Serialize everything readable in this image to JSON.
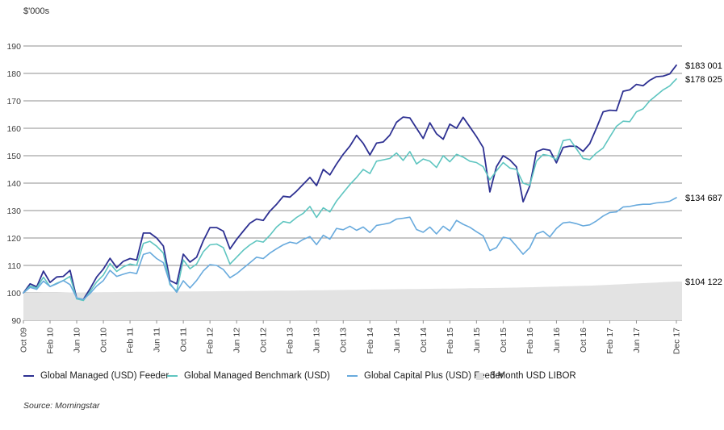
{
  "source": "Source: Morningstar",
  "chart_data": {
    "type": "line",
    "ylabel": "$'000s",
    "ylim": [
      90,
      190
    ],
    "ytick_interval": 10,
    "grid": "horizontal",
    "legend_position": "bottom",
    "x_start": "Oct 2009",
    "x_end": "Dec 2017",
    "x_unit": "month",
    "colors": {
      "grid": "#8f8f8f",
      "axis_text": "#3f3f3f",
      "background": "#ffffff"
    },
    "xticks": [
      {
        "label": "Oct 09",
        "i": 0
      },
      {
        "label": "Feb 10",
        "i": 4
      },
      {
        "label": "Jun 10",
        "i": 8
      },
      {
        "label": "Oct 10",
        "i": 12
      },
      {
        "label": "Feb 11",
        "i": 16
      },
      {
        "label": "Jun 11",
        "i": 20
      },
      {
        "label": "Oct 11",
        "i": 24
      },
      {
        "label": "Feb 12",
        "i": 28
      },
      {
        "label": "Jun 12",
        "i": 32
      },
      {
        "label": "Oct 12",
        "i": 36
      },
      {
        "label": "Feb 13",
        "i": 40
      },
      {
        "label": "Jun 13",
        "i": 44
      },
      {
        "label": "Oct 13",
        "i": 48
      },
      {
        "label": "Feb 14",
        "i": 52
      },
      {
        "label": "Jun 14",
        "i": 56
      },
      {
        "label": "Oct 14",
        "i": 60
      },
      {
        "label": "Feb 15",
        "i": 64
      },
      {
        "label": "Jun 15",
        "i": 68
      },
      {
        "label": "Oct 15",
        "i": 72
      },
      {
        "label": "Feb 16",
        "i": 76
      },
      {
        "label": "Jun 16",
        "i": 80
      },
      {
        "label": "Oct 16",
        "i": 84
      },
      {
        "label": "Feb 17",
        "i": 88
      },
      {
        "label": "Jun 17",
        "i": 92
      },
      {
        "label": "Dec 17",
        "i": 98
      }
    ],
    "series": [
      {
        "name": "Global Managed (USD) Feeder",
        "type": "line",
        "color": "#2e3192",
        "width": 1.8,
        "end_label": "$183 001",
        "end_value": 183001,
        "values": [
          100,
          103.3,
          102.2,
          107.9,
          103.8,
          105.8,
          106,
          108.2,
          98,
          97.6,
          101.5,
          105.8,
          108.7,
          112.6,
          109.2,
          111.5,
          112.5,
          112,
          121.8,
          121.8,
          120,
          117.1,
          104.5,
          103.3,
          114.1,
          111.2,
          113,
          119,
          123.8,
          123.8,
          122.5,
          116,
          119.5,
          122.5,
          125.4,
          126.9,
          126.4,
          129.8,
          132.3,
          135.2,
          134.9,
          137.1,
          139.6,
          142.1,
          139.1,
          145,
          143,
          147,
          150.5,
          153.5,
          157.4,
          154.5,
          150.3,
          154.6,
          155,
          157.5,
          162.2,
          164.1,
          163.8,
          160,
          156.3,
          162,
          158,
          156,
          161.5,
          160,
          164,
          160.5,
          157,
          153,
          136.8,
          146,
          150,
          148.5,
          145.9,
          133.2,
          139,
          151.4,
          152.4,
          152,
          147.4,
          153,
          153.5,
          153.4,
          151.6,
          154.4,
          160,
          166,
          166.6,
          166.4,
          173.5,
          174,
          176,
          175.5,
          177.5,
          178.8,
          179,
          179.8,
          183
        ]
      },
      {
        "name": "Global Managed Benchmark (USD)",
        "type": "line",
        "color": "#5ec5c0",
        "width": 1.6,
        "end_label": "$178 025",
        "end_value": 178025,
        "values": [
          100,
          102.5,
          101.8,
          105.7,
          102.3,
          103.5,
          104.5,
          106,
          97.8,
          97.2,
          100.5,
          104,
          106.5,
          110.7,
          107.8,
          109.5,
          110.5,
          110,
          118,
          118.8,
          117,
          114.5,
          103,
          100.6,
          112,
          108.8,
          110.5,
          115,
          117.5,
          117.8,
          116.5,
          110.5,
          113,
          115.5,
          117.5,
          119,
          118.5,
          121,
          124,
          126,
          125.5,
          127.5,
          129,
          131.5,
          127.5,
          131,
          129.5,
          133.5,
          136.5,
          139.5,
          142.1,
          145,
          143.5,
          148,
          148.5,
          149,
          151,
          148.3,
          151.5,
          147,
          148.8,
          148,
          145.7,
          150,
          147.8,
          150.5,
          149.5,
          148,
          147.5,
          146,
          141.2,
          144.5,
          147.5,
          145.5,
          145,
          140,
          139.2,
          148,
          150.4,
          150,
          148.5,
          155.5,
          156,
          152.5,
          149,
          148.6,
          151,
          152.8,
          156.8,
          160.7,
          162.6,
          162.4,
          166,
          167.1,
          170,
          172,
          174,
          175.4,
          178
        ]
      },
      {
        "name": "Global Capital Plus (USD) Feeder",
        "type": "line",
        "color": "#68aadd",
        "width": 1.6,
        "end_label": "$134 687",
        "end_value": 134687,
        "values": [
          100,
          102,
          101.3,
          104.3,
          102.3,
          103.3,
          104.5,
          103,
          98.2,
          97.6,
          99.8,
          102.5,
          104.5,
          108.2,
          106,
          106.8,
          107.5,
          107,
          114,
          114.7,
          112.5,
          111,
          103.5,
          100.2,
          104.4,
          101.8,
          104.5,
          108,
          110.3,
          110,
          108.5,
          105.5,
          107,
          109,
          111,
          113,
          112.5,
          114.5,
          116.1,
          117.5,
          118.5,
          118,
          119.5,
          120.5,
          117.6,
          121,
          119.6,
          123.5,
          123,
          124.3,
          122.8,
          124,
          122,
          124.6,
          125,
          125.5,
          126.9,
          127.2,
          127.6,
          123.1,
          122.1,
          124,
          121.5,
          124.3,
          122.6,
          126.4,
          125,
          123.9,
          122.3,
          120.8,
          115.4,
          116.5,
          120.3,
          119.8,
          117,
          114.1,
          116.5,
          121.5,
          122.4,
          120.4,
          123.5,
          125.5,
          125.8,
          125.2,
          124.4,
          124.8,
          126.2,
          128,
          129.3,
          129.5,
          131.3,
          131.5,
          132,
          132.3,
          132.3,
          132.8,
          133,
          133.4,
          134.7
        ]
      },
      {
        "name": "3 Month USD LIBOR",
        "type": "area",
        "color": "#e3e3e3",
        "swatch_color": "#dedede",
        "end_label": "$104 122",
        "end_value": 104122,
        "values": [
          100,
          100.02,
          100.04,
          100.06,
          100.08,
          100.1,
          100.12,
          100.14,
          100.16,
          100.18,
          100.21,
          100.23,
          100.25,
          100.27,
          100.29,
          100.31,
          100.33,
          100.35,
          100.37,
          100.39,
          100.41,
          100.43,
          100.45,
          100.47,
          100.49,
          100.51,
          100.53,
          100.55,
          100.57,
          100.59,
          100.62,
          100.64,
          100.66,
          100.68,
          100.7,
          100.72,
          100.74,
          100.76,
          100.78,
          100.8,
          100.83,
          100.86,
          100.89,
          100.92,
          100.95,
          100.98,
          101.01,
          101.04,
          101.07,
          101.1,
          101.13,
          101.17,
          101.2,
          101.23,
          101.26,
          101.29,
          101.32,
          101.35,
          101.38,
          101.41,
          101.44,
          101.47,
          101.5,
          101.53,
          101.57,
          101.6,
          101.63,
          101.67,
          101.7,
          101.73,
          101.77,
          101.8,
          101.83,
          101.87,
          101.9,
          101.97,
          102.03,
          102.1,
          102.17,
          102.23,
          102.3,
          102.37,
          102.43,
          102.5,
          102.57,
          102.63,
          102.7,
          102.82,
          102.94,
          103.05,
          103.17,
          103.29,
          103.41,
          103.53,
          103.65,
          103.76,
          103.88,
          104,
          104.12
        ]
      }
    ]
  }
}
